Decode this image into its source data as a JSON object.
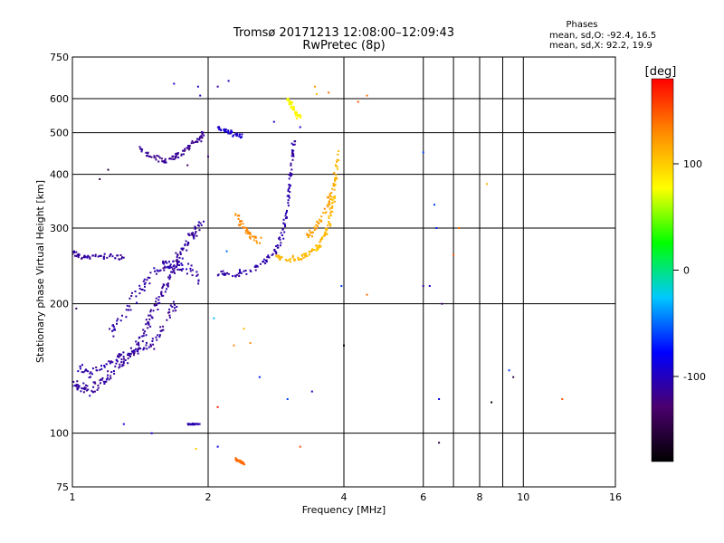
{
  "chart_data": {
    "type": "scatter",
    "title": "Tromsø 20171213 12:08:00–12:09:43",
    "subtitle": "RwPretec (8p)",
    "xlabel": "Frequency [MHz]",
    "ylabel": "Stationary phase Virtual Height [km]",
    "x_scale": "log",
    "y_scale": "log",
    "xlim": [
      1,
      16
    ],
    "ylim": [
      75,
      750
    ],
    "x_ticks": [
      1,
      2,
      4,
      6,
      8,
      10,
      16
    ],
    "x_tick_labels": [
      "1",
      "2",
      "4",
      "6",
      "8",
      "10",
      "16"
    ],
    "x_gridlines": [
      2,
      4,
      6,
      7,
      8,
      9,
      10
    ],
    "y_ticks": [
      75,
      100,
      200,
      300,
      400,
      500,
      600,
      750
    ],
    "y_tick_labels": [
      "75",
      "100",
      "200",
      "300",
      "400",
      "500",
      "600",
      "750"
    ],
    "y_gridlines": [
      100,
      200,
      300,
      400,
      500,
      600
    ],
    "grid": true,
    "stats": {
      "heading": "Phases",
      "line_o": "mean, sd,O: -92.4, 16.5",
      "line_x": "mean, sd,X:  92.2, 19.9"
    },
    "colorbar": {
      "label": "[deg]",
      "range": [
        -180,
        180
      ],
      "ticks": [
        100,
        0,
        -100
      ],
      "tick_labels": [
        "100",
        "0",
        "-100"
      ],
      "colors": [
        "#000000",
        "#4b006e",
        "#0000ff",
        "#00c8ff",
        "#00ff00",
        "#ffff00",
        "#ff8c00",
        "#ff0000"
      ]
    },
    "traces": [
      {
        "points": [
          [
            1.0,
            132
          ],
          [
            1.04,
            127
          ],
          [
            1.09,
            126
          ],
          [
            1.15,
            130
          ],
          [
            1.22,
            137
          ],
          [
            1.3,
            146
          ],
          [
            1.38,
            158
          ],
          [
            1.45,
            172
          ],
          [
            1.5,
            188
          ],
          [
            1.56,
            205
          ],
          [
            1.62,
            222
          ],
          [
            1.68,
            242
          ],
          [
            1.74,
            262
          ],
          [
            1.8,
            280
          ],
          [
            1.87,
            295
          ],
          [
            1.93,
            310
          ]
        ],
        "phase": -112,
        "spread": 0.045
      },
      {
        "points": [
          [
            1.02,
            142
          ],
          [
            1.1,
            138
          ],
          [
            1.2,
            145
          ],
          [
            1.3,
            152
          ],
          [
            1.4,
            156
          ],
          [
            1.5,
            160
          ],
          [
            1.6,
            180
          ],
          [
            1.7,
            200
          ]
        ],
        "phase": -110,
        "spread": 0.04
      },
      {
        "points": [
          [
            1.2,
            170
          ],
          [
            1.3,
            190
          ],
          [
            1.4,
            215
          ],
          [
            1.5,
            235
          ],
          [
            1.6,
            245
          ],
          [
            1.7,
            250
          ],
          [
            1.8,
            242
          ],
          [
            1.9,
            230
          ]
        ],
        "phase": -108,
        "spread": 0.05
      },
      {
        "points": [
          [
            1.0,
            262
          ],
          [
            1.04,
            258
          ],
          [
            1.1,
            258
          ],
          [
            1.2,
            258
          ],
          [
            1.3,
            255
          ]
        ],
        "phase": -112,
        "spread": 0.02
      },
      {
        "points": [
          [
            1.4,
            460
          ],
          [
            1.5,
            440
          ],
          [
            1.6,
            428
          ],
          [
            1.7,
            440
          ],
          [
            1.8,
            460
          ],
          [
            1.9,
            480
          ],
          [
            1.95,
            500
          ]
        ],
        "phase": -115,
        "spread": 0.025
      },
      {
        "points": [
          [
            2.1,
            237
          ],
          [
            2.3,
            234
          ],
          [
            2.5,
            240
          ],
          [
            2.7,
            252
          ],
          [
            2.85,
            270
          ],
          [
            2.95,
            300
          ],
          [
            3.0,
            340
          ],
          [
            3.04,
            390
          ],
          [
            3.08,
            440
          ],
          [
            3.1,
            480
          ]
        ],
        "phase": -108,
        "spread": 0.025
      },
      {
        "points": [
          [
            3.0,
            600
          ],
          [
            3.05,
            585
          ],
          [
            3.1,
            565
          ],
          [
            3.15,
            550
          ],
          [
            3.2,
            545
          ]
        ],
        "phase": 80,
        "spread": 0.02
      },
      {
        "points": [
          [
            2.8,
            258
          ],
          [
            3.0,
            253
          ],
          [
            3.2,
            255
          ],
          [
            3.35,
            262
          ],
          [
            3.5,
            270
          ],
          [
            3.6,
            285
          ],
          [
            3.7,
            305
          ],
          [
            3.78,
            340
          ],
          [
            3.84,
            390
          ],
          [
            3.88,
            450
          ]
        ],
        "phase": 108,
        "spread": 0.025
      },
      {
        "points": [
          [
            3.3,
            285
          ],
          [
            3.45,
            300
          ],
          [
            3.6,
            320
          ],
          [
            3.72,
            350
          ],
          [
            3.82,
            400
          ]
        ],
        "phase": 120,
        "spread": 0.03
      },
      {
        "points": [
          [
            2.3,
            330
          ],
          [
            2.4,
            300
          ],
          [
            2.5,
            285
          ],
          [
            2.6,
            278
          ]
        ],
        "phase": 130,
        "spread": 0.03
      },
      {
        "points": [
          [
            2.1,
            515
          ],
          [
            2.2,
            505
          ],
          [
            2.3,
            495
          ],
          [
            2.4,
            490
          ]
        ],
        "phase": -95,
        "spread": 0.02
      },
      {
        "points": [
          [
            1.8,
            105
          ],
          [
            1.85,
            105
          ],
          [
            1.92,
            105
          ]
        ],
        "phase": -105,
        "spread": 0.006
      },
      {
        "points": [
          [
            2.3,
            87
          ],
          [
            2.35,
            86
          ],
          [
            2.4,
            85
          ]
        ],
        "phase": 140,
        "spread": 0.01
      }
    ],
    "scatter_points": [
      [
        1.68,
        650,
        -100
      ],
      [
        1.9,
        640,
        -100
      ],
      [
        1.92,
        610,
        -100
      ],
      [
        2.1,
        640,
        -110
      ],
      [
        2.22,
        660,
        -100
      ],
      [
        3.45,
        640,
        120
      ],
      [
        3.48,
        615,
        110
      ],
      [
        3.7,
        620,
        140
      ],
      [
        4.5,
        610,
        140
      ],
      [
        4.3,
        590,
        150
      ],
      [
        6.0,
        450,
        -60
      ],
      [
        6.35,
        340,
        -60
      ],
      [
        6.42,
        300,
        -70
      ],
      [
        7.2,
        300,
        140
      ],
      [
        7.0,
        260,
        150
      ],
      [
        6.0,
        220,
        -110
      ],
      [
        6.6,
        200,
        -120
      ],
      [
        6.2,
        220,
        -100
      ],
      [
        8.3,
        380,
        110
      ],
      [
        9.3,
        140,
        -60
      ],
      [
        9.5,
        135,
        -150
      ],
      [
        12.2,
        120,
        150
      ],
      [
        8.5,
        118,
        -180
      ],
      [
        6.5,
        120,
        -80
      ],
      [
        6.5,
        95,
        -150
      ],
      [
        1.5,
        100,
        -90
      ],
      [
        1.3,
        105,
        -90
      ],
      [
        2.28,
        160,
        130
      ],
      [
        2.48,
        162,
        130
      ],
      [
        2.06,
        185,
        -30
      ],
      [
        3.0,
        120,
        -60
      ],
      [
        2.6,
        135,
        -70
      ],
      [
        3.4,
        125,
        -100
      ],
      [
        4.0,
        160,
        -180
      ],
      [
        3.95,
        220,
        -60
      ],
      [
        4.5,
        210,
        140
      ],
      [
        1.02,
        195,
        -140
      ],
      [
        3.2,
        93,
        150
      ],
      [
        2.1,
        115,
        170
      ],
      [
        2.4,
        175,
        110
      ],
      [
        2.35,
        240,
        -100
      ],
      [
        2.2,
        265,
        -50
      ],
      [
        1.2,
        410,
        -160
      ],
      [
        1.15,
        390,
        -150
      ],
      [
        1.8,
        420,
        -130
      ],
      [
        2.0,
        440,
        -120
      ],
      [
        2.8,
        530,
        -100
      ],
      [
        3.2,
        515,
        -90
      ],
      [
        1.88,
        92,
        100
      ],
      [
        2.1,
        93,
        -80
      ]
    ]
  }
}
